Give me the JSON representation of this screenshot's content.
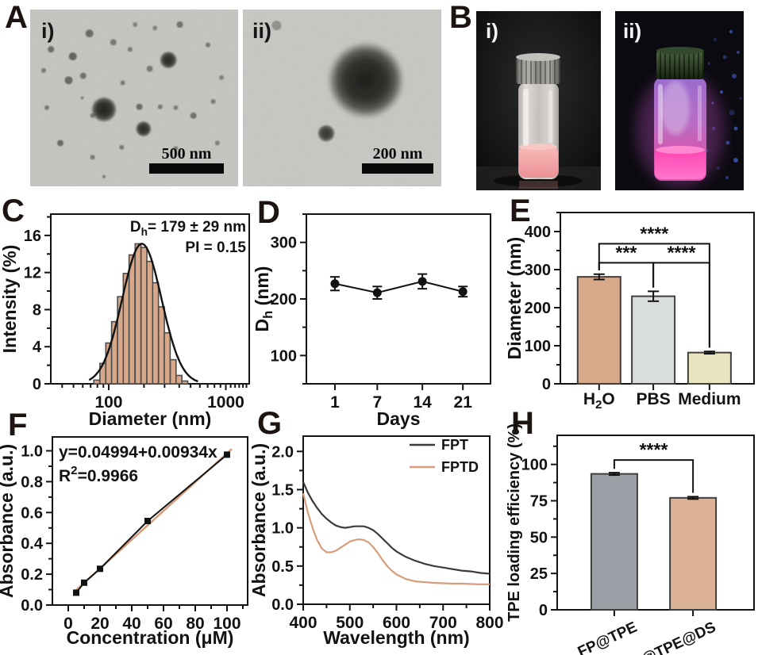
{
  "panels": {
    "A": {
      "label": "A",
      "i_label": "i)",
      "ii_label": "ii)",
      "scale_i": "500 nm",
      "scale_ii": "200 nm"
    },
    "B": {
      "label": "B",
      "i_label": "i)",
      "ii_label": "ii)"
    },
    "C": {
      "label": "C"
    },
    "D": {
      "label": "D"
    },
    "E": {
      "label": "E"
    },
    "F": {
      "label": "F"
    },
    "G": {
      "label": "G"
    },
    "H": {
      "label": "H"
    }
  },
  "chart_data": {
    "C": {
      "type": "bar",
      "xlabel": "Diameter (nm)",
      "ylabel": "Intensity (%)",
      "xscale": "log",
      "xlim": [
        32,
        1585
      ],
      "ylim": [
        0,
        18.3
      ],
      "xticks": [
        100,
        1000
      ],
      "xtick_labels": [
        "100",
        "1000"
      ],
      "yticks": [
        0,
        4,
        8,
        12,
        16
      ],
      "annotation": {
        "line1": [
          {
            "t": "D"
          },
          {
            "t": "h",
            "sub": true
          },
          {
            "t": "= 179 ± 29 nm"
          }
        ],
        "line2": "PI = 0.15"
      },
      "bar_color": "#d8a88b",
      "bar_edge": "#4d4d4d",
      "curve_color": "#121212",
      "categories": [
        79,
        89,
        100,
        112,
        126,
        141,
        158,
        178,
        200,
        224,
        251,
        282,
        316,
        355,
        398,
        447
      ],
      "values": [
        0.4,
        2.2,
        4.4,
        6.7,
        9.4,
        11.9,
        13.9,
        15.1,
        14.7,
        13.2,
        10.9,
        8.3,
        5.5,
        2.6,
        0.9,
        0.3
      ],
      "fit_peak": 15.1,
      "fit_mu_log": 2.283,
      "fit_sigma_log": 0.168
    },
    "D": {
      "type": "line",
      "xlabel": "Days",
      "ylabel": [
        {
          "t": "D"
        },
        {
          "t": "h",
          "sub": true
        },
        {
          "t": " (nm)"
        }
      ],
      "categories": [
        "1",
        "7",
        "14",
        "21"
      ],
      "values": [
        227,
        211,
        231,
        213
      ],
      "errors": [
        12,
        11,
        13,
        9
      ],
      "ylim": [
        50,
        350
      ],
      "yticks": [
        100,
        200,
        300
      ],
      "color": "#121212"
    },
    "E": {
      "type": "bar",
      "ylabel": "Diameter (nm)",
      "categories": [
        [
          {
            "t": "H"
          },
          {
            "t": "2",
            "sub": true
          },
          {
            "t": "O"
          }
        ],
        "PBS",
        "Medium"
      ],
      "values": [
        281,
        230,
        82
      ],
      "errors": [
        7,
        13,
        3
      ],
      "bar_colors": [
        "#d8a88b",
        "#d9dddc",
        "#eae5c1"
      ],
      "ylim": [
        0,
        450
      ],
      "yticks": [
        0,
        100,
        200,
        300,
        400
      ],
      "significance": [
        {
          "a": 0,
          "b": 2,
          "y": 368,
          "label": "****"
        },
        {
          "a": 0,
          "b": 1,
          "y": 318,
          "label": "***"
        },
        {
          "a": 1,
          "b": 2,
          "y": 318,
          "label": "****"
        }
      ]
    },
    "F": {
      "type": "scatter",
      "xlabel": "Concentration (μM)",
      "ylabel": "Absorbance (a.u.)",
      "x": [
        5,
        10,
        20,
        50,
        100
      ],
      "y": [
        0.08,
        0.145,
        0.235,
        0.545,
        0.975
      ],
      "fit": {
        "equation": "y=0.04994+0.00934x",
        "r2": [
          {
            "t": "R"
          },
          {
            "t": "2",
            "sup": true
          },
          {
            "t": "=0.9966"
          }
        ],
        "intercept": 0.04994,
        "slope": 0.00934,
        "color": "#d79d7c"
      },
      "xlim": [
        -10,
        113
      ],
      "ylim": [
        0,
        1.09
      ],
      "xticks": [
        0,
        20,
        40,
        60,
        80,
        100
      ],
      "xtick_labels": [
        "0",
        "20",
        "40",
        "60",
        "80",
        "100"
      ],
      "yticks": [
        0,
        0.2,
        0.4,
        0.6,
        0.8,
        1.0
      ],
      "ytick_labels": [
        "0.0",
        "0.2",
        "0.4",
        "0.6",
        "0.8",
        "1.0"
      ],
      "color": "#121212"
    },
    "G": {
      "type": "line",
      "xlabel": "Wavelength (nm)",
      "ylabel": "Absorbance (a.u.)",
      "xlim": [
        400,
        800
      ],
      "ylim": [
        0,
        2.2
      ],
      "xticks": [
        400,
        500,
        600,
        700,
        800
      ],
      "xtick_labels": [
        "400",
        "500",
        "600",
        "700",
        "800"
      ],
      "yticks": [
        0,
        0.5,
        1.0,
        1.5,
        2.0
      ],
      "ytick_labels": [
        "0.0",
        "0.5",
        "1.0",
        "1.5",
        "2.0"
      ],
      "legend_position": "top-right",
      "series": [
        {
          "name": "FPT",
          "color": "#3a3a3a",
          "x": [
            400,
            410,
            420,
            430,
            440,
            450,
            460,
            470,
            480,
            490,
            500,
            510,
            520,
            530,
            540,
            550,
            560,
            570,
            580,
            590,
            600,
            620,
            640,
            660,
            680,
            700,
            720,
            740,
            760,
            780,
            800
          ],
          "y": [
            1.6,
            1.46,
            1.35,
            1.26,
            1.18,
            1.12,
            1.07,
            1.03,
            1.01,
            1.0,
            1.01,
            1.02,
            1.02,
            1.02,
            1.0,
            0.97,
            0.92,
            0.86,
            0.8,
            0.74,
            0.69,
            0.62,
            0.57,
            0.53,
            0.5,
            0.48,
            0.46,
            0.44,
            0.43,
            0.41,
            0.4
          ]
        },
        {
          "name": "FPTD",
          "color": "#d79d7c",
          "x": [
            400,
            410,
            420,
            430,
            440,
            450,
            460,
            470,
            480,
            490,
            500,
            510,
            520,
            530,
            540,
            550,
            560,
            570,
            580,
            590,
            600,
            620,
            640,
            660,
            680,
            700,
            720,
            740,
            760,
            780,
            800
          ],
          "y": [
            1.45,
            1.2,
            1.0,
            0.84,
            0.73,
            0.68,
            0.68,
            0.7,
            0.74,
            0.78,
            0.82,
            0.84,
            0.85,
            0.84,
            0.81,
            0.75,
            0.67,
            0.58,
            0.5,
            0.44,
            0.39,
            0.33,
            0.3,
            0.29,
            0.28,
            0.275,
            0.27,
            0.27,
            0.265,
            0.26,
            0.26
          ]
        }
      ]
    },
    "H": {
      "type": "bar",
      "ylabel": "TPE loading efficiency (%)",
      "categories": [
        "FP@TPE",
        "FP@TPE@DS"
      ],
      "values": [
        93.5,
        77
      ],
      "errors": [
        0.8,
        0.8
      ],
      "bar_colors": [
        "#9aa0a5",
        "#dcb295"
      ],
      "ylim": [
        0,
        120
      ],
      "yticks": [
        0,
        25,
        50,
        75,
        100
      ],
      "significance": [
        {
          "a": 0,
          "b": 1,
          "y": 103,
          "label": "****"
        }
      ]
    }
  }
}
